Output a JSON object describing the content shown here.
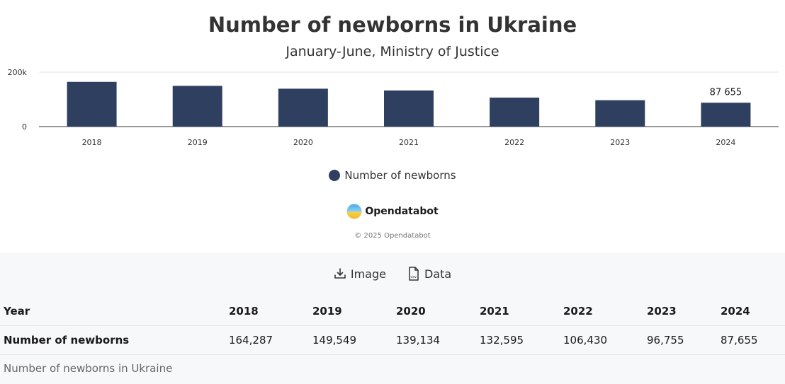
{
  "chart_data": {
    "type": "bar",
    "title": "Number of newborns in Ukraine",
    "subtitle": "January-June, Ministry of Justice",
    "categories": [
      "2018",
      "2019",
      "2020",
      "2021",
      "2022",
      "2023",
      "2024"
    ],
    "series": [
      {
        "name": "Number of newborns",
        "values": [
          164287,
          149549,
          139134,
          132595,
          106430,
          96755,
          87655
        ],
        "color": "#2e3f5f"
      }
    ],
    "ylim": [
      0,
      200000
    ],
    "y_ticks": [
      {
        "value": 0,
        "label": "0"
      },
      {
        "value": 200000,
        "label": "200k"
      }
    ],
    "data_labels": [
      {
        "category": "2024",
        "text": "87 655"
      }
    ],
    "xlabel": "",
    "ylabel": "",
    "grid": true,
    "legend_position": "bottom"
  },
  "brand": {
    "name": "Opendatabot",
    "copyright": "© 2025 Opendatabot"
  },
  "actions": {
    "image_label": "Image",
    "data_label": "Data"
  },
  "table": {
    "header_label": "Year",
    "years": [
      "2018",
      "2019",
      "2020",
      "2021",
      "2022",
      "2023",
      "2024"
    ],
    "row_label": "Number of newborns",
    "values": [
      "164,287",
      "149,549",
      "139,134",
      "132,595",
      "106,430",
      "96,755",
      "87,655"
    ],
    "caption": "Number of newborns in Ukraine"
  },
  "colors": {
    "bar": "#2e3f5f",
    "panel_background": "#f7f8fa"
  }
}
